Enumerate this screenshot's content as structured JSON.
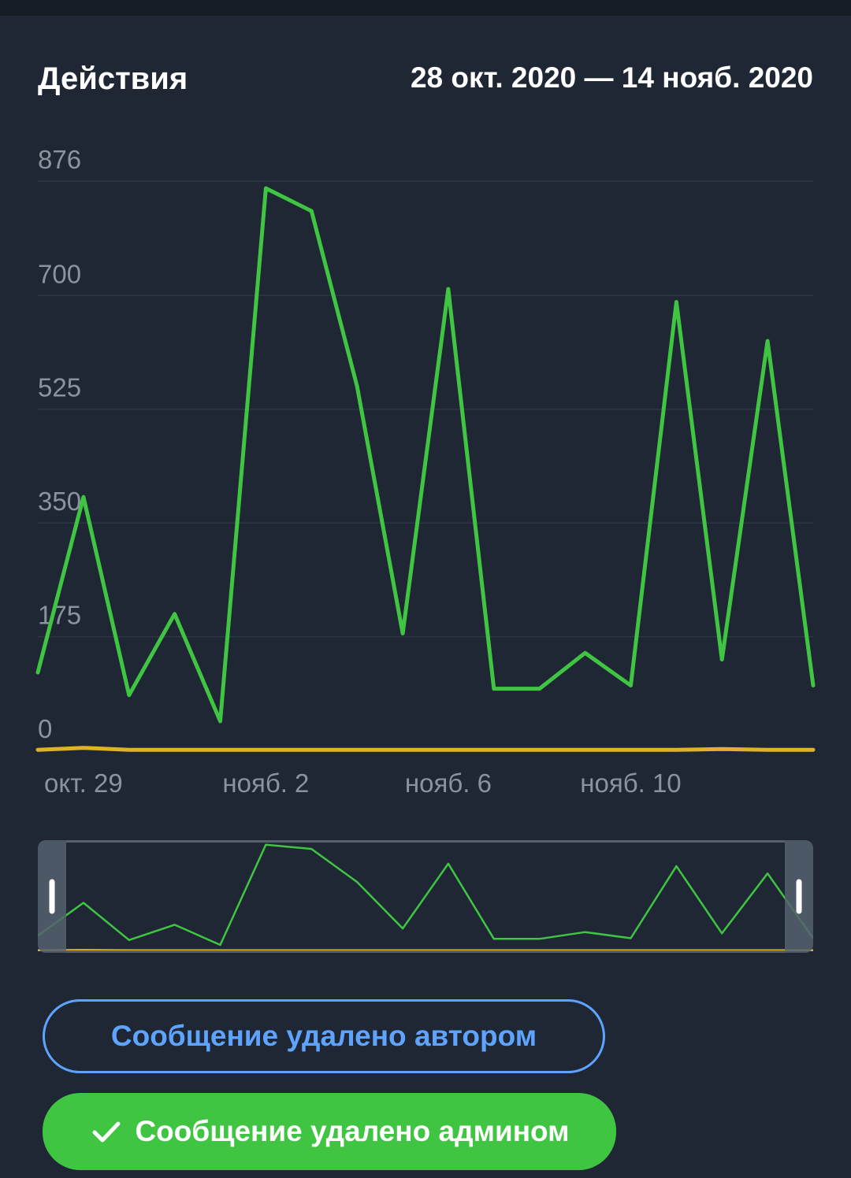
{
  "header": {
    "title": "Действия",
    "range": "28 окт. 2020 — 14 нояб. 2020"
  },
  "colors": {
    "background": "#1e2733",
    "green_series": "#3fc542",
    "yellow_series": "#e0b326",
    "grid": "#2c3744",
    "axis_text": "#8a939e",
    "accent_blue": "#5ea4ff"
  },
  "chart_data": {
    "type": "line",
    "title": "Действия",
    "x": [
      "2020-10-28",
      "2020-10-29",
      "2020-10-30",
      "2020-10-31",
      "2020-11-01",
      "2020-11-02",
      "2020-11-03",
      "2020-11-04",
      "2020-11-05",
      "2020-11-06",
      "2020-11-07",
      "2020-11-08",
      "2020-11-09",
      "2020-11-10",
      "2020-11-11",
      "2020-11-12",
      "2020-11-13",
      "2020-11-14"
    ],
    "series": [
      {
        "color": "#3fc542",
        "values": [
          120,
          390,
          85,
          210,
          45,
          865,
          830,
          560,
          180,
          710,
          95,
          95,
          150,
          100,
          690,
          140,
          630,
          100
        ]
      },
      {
        "color": "#e0b326",
        "values": [
          1,
          4,
          1,
          1,
          1,
          1,
          1,
          1,
          1,
          1,
          1,
          1,
          1,
          1,
          1,
          2,
          1,
          1
        ]
      }
    ],
    "y_ticks": [
      "0",
      "175",
      "350",
      "525",
      "700",
      "876"
    ],
    "x_ticks": [
      {
        "label": "окт. 29",
        "x": "2020-10-29"
      },
      {
        "label": "нояб. 2",
        "x": "2020-11-02"
      },
      {
        "label": "нояб. 6",
        "x": "2020-11-06"
      },
      {
        "label": "нояб. 10",
        "x": "2020-11-10"
      }
    ],
    "ylim": [
      0,
      876
    ],
    "grid": true
  },
  "buttons": {
    "deleted_by_author": "Сообщение удалено автором",
    "deleted_by_admin": "Сообщение удалено админом"
  }
}
